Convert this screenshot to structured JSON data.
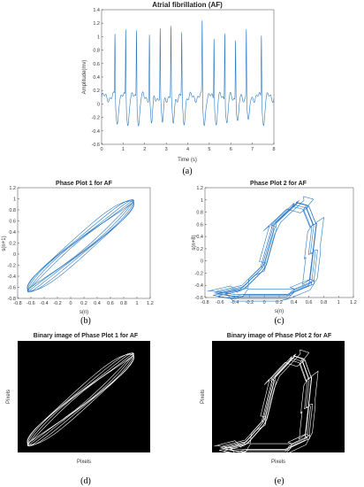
{
  "chart_data": [
    {
      "type": "line",
      "title": "Atrial fibrillation (AF)",
      "xlabel": "Time (s)",
      "ylabel": "Amplitude(mv)",
      "xlim": [
        0,
        8
      ],
      "ylim": [
        -0.6,
        1.4
      ],
      "x_ticks": [
        "0",
        "1",
        "2",
        "3",
        "4",
        "5",
        "6",
        "7",
        "8"
      ],
      "y_ticks": [
        "-0.6",
        "-0.4",
        "-0.2",
        "0",
        "0.2",
        "0.4",
        "0.6",
        "0.8",
        "1",
        "1.2",
        "1.4"
      ],
      "beat_times_s": [
        0.62,
        1.12,
        1.62,
        2.22,
        2.72,
        3.22,
        3.72,
        4.67,
        5.22,
        5.72,
        6.22,
        6.72,
        7.42
      ],
      "beat_peaks_mv": [
        1.03,
        1.12,
        1.13,
        1.03,
        1.1,
        1.12,
        1.03,
        1.22,
        1.03,
        1.12,
        1.0,
        1.13,
        1.05
      ],
      "baseline_mv": 0.1,
      "trough_mv": -0.3,
      "caption": "(a)",
      "grid": false
    },
    {
      "type": "line",
      "title": "Phase Plot 1 for AF",
      "xlabel": "s(n)",
      "ylabel": "s(n+1)",
      "xlim": [
        -0.8,
        1.2
      ],
      "ylim": [
        -0.8,
        1.2
      ],
      "x_ticks": [
        "-0.8",
        "-0.6",
        "-0.4",
        "-0.2",
        "0",
        "0.2",
        "0.4",
        "0.6",
        "0.8",
        "1",
        "1.2"
      ],
      "y_ticks": [
        "-0.8",
        "-0.6",
        "-0.4",
        "-0.2",
        "0",
        "0.2",
        "0.4",
        "0.6",
        "0.8",
        "1",
        "1.2"
      ],
      "caption": "(b)"
    },
    {
      "type": "line",
      "title": "Phase Plot 2 for AF",
      "xlabel": "s(n)",
      "ylabel": "s(n+8)",
      "xlim": [
        -0.8,
        1.2
      ],
      "ylim": [
        -0.6,
        1.2
      ],
      "x_ticks": [
        "-0.8",
        "-0.6",
        "-0.4",
        "-0.2",
        "0",
        "0.2",
        "0.4",
        "0.6",
        "0.8",
        "1",
        "1.2"
      ],
      "y_ticks": [
        "-0.6",
        "-0.4",
        "-0.2",
        "0",
        "0.2",
        "0.4",
        "0.6",
        "0.8",
        "1",
        "1.2"
      ],
      "caption": "(c)"
    },
    {
      "type": "heatmap",
      "title": "Binary image of Phase Plot 1 for AF",
      "xlabel": "Pixels",
      "ylabel": "Pixels",
      "caption": "(d)"
    },
    {
      "type": "heatmap",
      "title": "Binary image of Phase Plot 2 for AF",
      "xlabel": "Pixels",
      "ylabel": "Pixels",
      "caption": "(e)"
    }
  ],
  "colors": {
    "trace": "#2a78c2",
    "binary_bg": "#000000",
    "binary_fg": "#ffffff"
  }
}
